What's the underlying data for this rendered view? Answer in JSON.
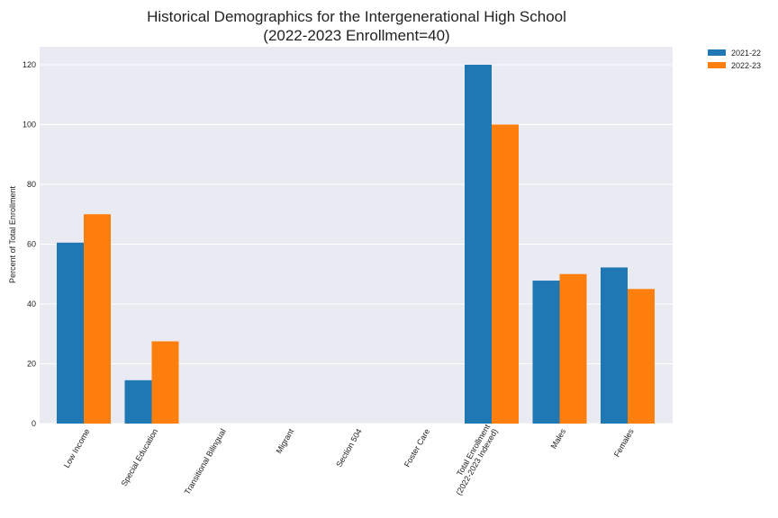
{
  "chart_data": {
    "type": "bar",
    "title": "Historical Demographics for the Intergenerational High School",
    "subtitle": "(2022-2023 Enrollment=40)",
    "xlabel": "",
    "ylabel": "Percent of Total Enrollment",
    "ylim": [
      0,
      126
    ],
    "yticks": [
      0,
      20,
      40,
      60,
      80,
      100,
      120
    ],
    "grid": true,
    "legend_position": "outside-top-right",
    "categories": [
      [
        "Low Income"
      ],
      [
        "Special Education"
      ],
      [
        "Transitional Bilingual"
      ],
      [
        "Migrant"
      ],
      [
        "Section 504"
      ],
      [
        "Foster Care"
      ],
      [
        "Total Enrollment",
        "(2022-2023 Indexed)"
      ],
      [
        "Males"
      ],
      [
        "Females"
      ]
    ],
    "series": [
      {
        "name": "2021-22",
        "color": "#1f77b4",
        "values": [
          60.5,
          14.5,
          0,
          0,
          0,
          0,
          120,
          47.8,
          52.2
        ]
      },
      {
        "name": "2022-23",
        "color": "#ff7f0e",
        "values": [
          70,
          27.5,
          0,
          0,
          0,
          0,
          100,
          50,
          45
        ]
      }
    ]
  }
}
